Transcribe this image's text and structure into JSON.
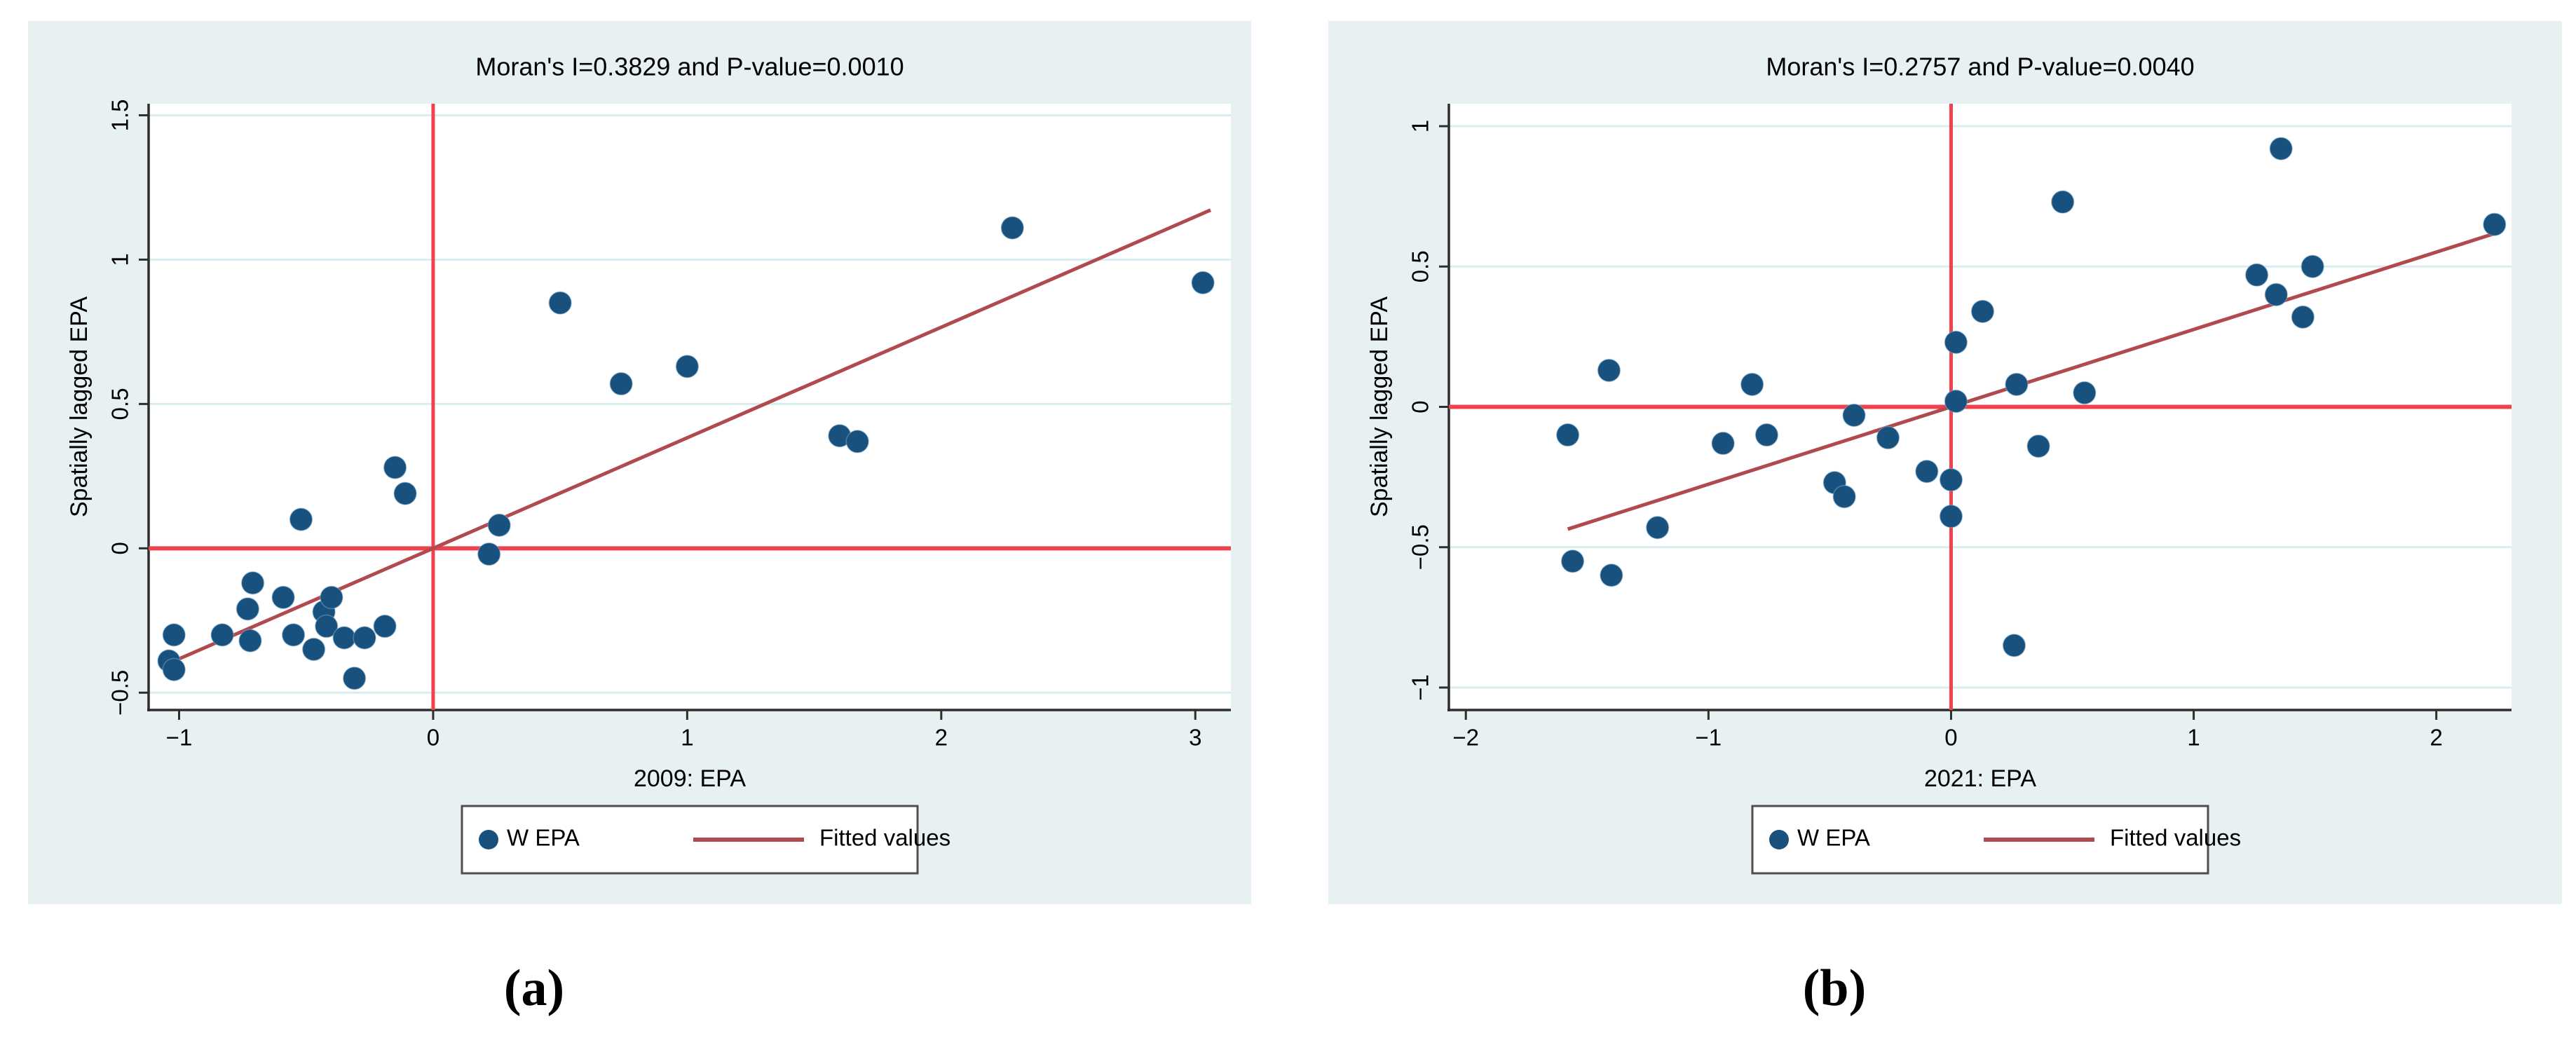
{
  "figure": {
    "caption_a": "(a)",
    "caption_b": "(b)"
  },
  "colors": {
    "panel_background": "#e8f1f2",
    "plot_background": "#ffffff",
    "gridline": "#d9edf1",
    "axis": "#2e2e2e",
    "text": "#000000",
    "point": "#18517d",
    "point_halo": "#8fb3cf",
    "reference_line": "#f0424d",
    "fitted_line": "#b04a4e",
    "legend_border": "#4d4d4d",
    "legend_background": "#ffffff"
  },
  "chart_data": [
    {
      "type": "scatter",
      "title": "Moran's I=0.3829 and P-value=0.0010",
      "xlabel": "2009: EPA",
      "ylabel": "Spatially lagged EPA",
      "legend": [
        {
          "label": "W EPA",
          "marker": "dot"
        },
        {
          "label": "Fitted values",
          "marker": "line"
        }
      ],
      "legend_position": "bottom-center",
      "grid": "horizontal",
      "xlim": [
        -1.12,
        3.14
      ],
      "ylim": [
        -0.56,
        1.54
      ],
      "x_ticks": [
        {
          "v": -1,
          "label": "−1"
        },
        {
          "v": 0,
          "label": "0"
        },
        {
          "v": 1,
          "label": "1"
        },
        {
          "v": 2,
          "label": "2"
        },
        {
          "v": 3,
          "label": "3"
        }
      ],
      "y_ticks": [
        {
          "v": -0.5,
          "label": "−0.5"
        },
        {
          "v": 0,
          "label": "0"
        },
        {
          "v": 0.5,
          "label": "0.5"
        },
        {
          "v": 1,
          "label": "1"
        },
        {
          "v": 1.5,
          "label": "1.5"
        }
      ],
      "reference_vline_x": 0,
      "reference_hline_y": 0,
      "fitted_line": {
        "slope": 0.3829,
        "intercept": 0,
        "x_from": -1.04,
        "x_to": 3.06
      },
      "points": [
        [
          -1.04,
          -0.39
        ],
        [
          -1.02,
          -0.42
        ],
        [
          -1.02,
          -0.3
        ],
        [
          -0.83,
          -0.3
        ],
        [
          -0.73,
          -0.21
        ],
        [
          -0.72,
          -0.32
        ],
        [
          -0.71,
          -0.12
        ],
        [
          -0.59,
          -0.17
        ],
        [
          -0.55,
          -0.3
        ],
        [
          -0.52,
          0.1
        ],
        [
          -0.47,
          -0.35
        ],
        [
          -0.43,
          -0.22
        ],
        [
          -0.42,
          -0.27
        ],
        [
          -0.4,
          -0.17
        ],
        [
          -0.35,
          -0.31
        ],
        [
          -0.31,
          -0.45
        ],
        [
          -0.27,
          -0.31
        ],
        [
          -0.19,
          -0.27
        ],
        [
          -0.15,
          0.28
        ],
        [
          -0.11,
          0.19
        ],
        [
          0.22,
          -0.02
        ],
        [
          0.26,
          0.08
        ],
        [
          0.5,
          0.85
        ],
        [
          0.74,
          0.57
        ],
        [
          1.0,
          0.63
        ],
        [
          1.6,
          0.39
        ],
        [
          1.67,
          0.37
        ],
        [
          2.28,
          1.11
        ],
        [
          3.03,
          0.92
        ]
      ]
    },
    {
      "type": "scatter",
      "title": "Moran's I=0.2757 and P-value=0.0040",
      "xlabel": "2021: EPA",
      "ylabel": "Spatially lagged EPA",
      "legend": [
        {
          "label": "W EPA",
          "marker": "dot"
        },
        {
          "label": "Fitted values",
          "marker": "line"
        }
      ],
      "legend_position": "bottom-center",
      "grid": "horizontal",
      "xlim": [
        -2.07,
        2.31
      ],
      "ylim": [
        -1.08,
        1.08
      ],
      "x_ticks": [
        {
          "v": -2,
          "label": "−2"
        },
        {
          "v": -1,
          "label": "−1"
        },
        {
          "v": 0,
          "label": "0"
        },
        {
          "v": 1,
          "label": "1"
        },
        {
          "v": 2,
          "label": "2"
        }
      ],
      "y_ticks": [
        {
          "v": -1,
          "label": "−1"
        },
        {
          "v": -0.5,
          "label": "−0.5"
        },
        {
          "v": 0,
          "label": "0"
        },
        {
          "v": 0.5,
          "label": "0.5"
        },
        {
          "v": 1,
          "label": "1"
        }
      ],
      "reference_vline_x": 0,
      "reference_hline_y": 0,
      "fitted_line": {
        "slope": 0.2757,
        "intercept": 0,
        "x_from": -1.58,
        "x_to": 2.25
      },
      "points": [
        [
          -1.58,
          -0.1
        ],
        [
          -1.56,
          -0.55
        ],
        [
          -1.41,
          0.13
        ],
        [
          -1.4,
          -0.6
        ],
        [
          -1.21,
          -0.43
        ],
        [
          -0.94,
          -0.13
        ],
        [
          -0.82,
          0.08
        ],
        [
          -0.76,
          -0.1
        ],
        [
          -0.48,
          -0.27
        ],
        [
          -0.44,
          -0.32
        ],
        [
          -0.4,
          -0.03
        ],
        [
          -0.26,
          -0.11
        ],
        [
          -0.1,
          -0.23
        ],
        [
          0.0,
          -0.26
        ],
        [
          0.0,
          -0.39
        ],
        [
          0.02,
          0.02
        ],
        [
          0.02,
          0.23
        ],
        [
          0.13,
          0.34
        ],
        [
          0.26,
          -0.85
        ],
        [
          0.27,
          0.08
        ],
        [
          0.36,
          -0.14
        ],
        [
          0.46,
          0.73
        ],
        [
          0.55,
          0.05
        ],
        [
          1.26,
          0.47
        ],
        [
          1.34,
          0.4
        ],
        [
          1.36,
          0.92
        ],
        [
          1.45,
          0.32
        ],
        [
          1.49,
          0.5
        ],
        [
          2.24,
          0.65
        ]
      ]
    }
  ]
}
